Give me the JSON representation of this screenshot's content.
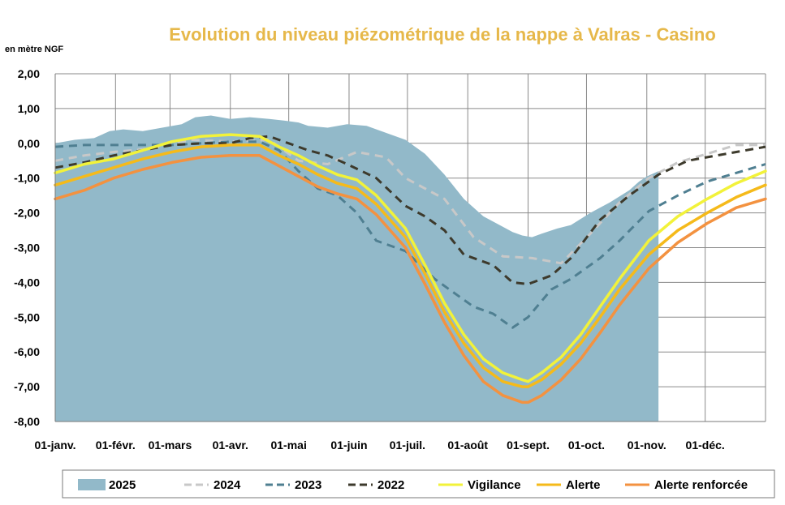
{
  "chart_data": {
    "type": "line",
    "title": "Evolution du niveau piézométrique de la nappe à Valras - Casino",
    "ylabel": "en mètre NGF",
    "xlabel": "",
    "ylim": [
      -8,
      2
    ],
    "xlim": [
      0,
      365
    ],
    "grid": true,
    "legend_position": "bottom",
    "y_ticks": [
      "2,00",
      "1,00",
      "0,00",
      "-1,00",
      "-2,00",
      "-3,00",
      "-4,00",
      "-5,00",
      "-6,00",
      "-7,00",
      "-8,00"
    ],
    "y_tick_values": [
      2,
      1,
      0,
      -1,
      -2,
      -3,
      -4,
      -5,
      -6,
      -7,
      -8
    ],
    "x_ticks": [
      "01-janv.",
      "01-févr.",
      "01-mars",
      "01-avr.",
      "01-mai",
      "01-juin",
      "01-juil.",
      "01-août",
      "01-sept.",
      "01-oct.",
      "01-nov.",
      "01-déc."
    ],
    "x_tick_days": [
      0,
      31,
      59,
      90,
      120,
      151,
      181,
      212,
      243,
      273,
      304,
      334
    ],
    "series": [
      {
        "name": "2025",
        "style": "area",
        "color": "#92b9c9",
        "x": [
          0,
          10,
          20,
          28,
          35,
          45,
          55,
          65,
          72,
          80,
          90,
          100,
          110,
          118,
          125,
          130,
          140,
          150,
          160,
          170,
          180,
          190,
          200,
          210,
          220,
          230,
          235,
          240,
          245,
          250,
          258,
          265,
          275,
          285,
          295,
          300,
          304,
          310
        ],
        "values": [
          0.0,
          0.1,
          0.15,
          0.35,
          0.4,
          0.35,
          0.45,
          0.55,
          0.75,
          0.8,
          0.7,
          0.75,
          0.7,
          0.65,
          0.6,
          0.5,
          0.45,
          0.55,
          0.5,
          0.3,
          0.1,
          -0.3,
          -0.9,
          -1.6,
          -2.1,
          -2.4,
          -2.55,
          -2.65,
          -2.7,
          -2.6,
          -2.45,
          -2.35,
          -2.0,
          -1.7,
          -1.35,
          -1.1,
          -0.95,
          -0.8
        ]
      },
      {
        "name": "2024",
        "style": "dashed",
        "color": "#c8c8c8",
        "x": [
          0,
          15,
          30,
          50,
          70,
          90,
          110,
          125,
          140,
          155,
          170,
          180,
          200,
          215,
          230,
          245,
          260,
          275,
          290,
          305,
          320,
          335,
          350,
          365
        ],
        "values": [
          -0.5,
          -0.35,
          -0.25,
          -0.15,
          0.1,
          0.05,
          0.1,
          -0.5,
          -0.6,
          -0.25,
          -0.4,
          -1.0,
          -1.6,
          -2.7,
          -3.25,
          -3.3,
          -3.45,
          -2.6,
          -1.7,
          -1.0,
          -0.55,
          -0.3,
          -0.05,
          -0.05
        ]
      },
      {
        "name": "2023",
        "style": "dashed",
        "color": "#4f7f91",
        "x": [
          0,
          15,
          30,
          45,
          60,
          75,
          90,
          105,
          115,
          125,
          135,
          145,
          155,
          165,
          180,
          195,
          205,
          215,
          225,
          235,
          243,
          255,
          265,
          280,
          290,
          305,
          320,
          335,
          350,
          365
        ],
        "values": [
          -0.1,
          -0.05,
          -0.05,
          -0.05,
          -0.05,
          0.0,
          0.05,
          0.05,
          -0.2,
          -0.8,
          -1.3,
          -1.5,
          -2.0,
          -2.8,
          -3.1,
          -3.9,
          -4.3,
          -4.7,
          -4.9,
          -5.3,
          -5.0,
          -4.2,
          -3.9,
          -3.3,
          -2.8,
          -1.95,
          -1.5,
          -1.1,
          -0.85,
          -0.6
        ]
      },
      {
        "name": "2022",
        "style": "dashed",
        "color": "#3d3a2c",
        "x": [
          0,
          15,
          30,
          45,
          60,
          75,
          90,
          100,
          110,
          120,
          130,
          140,
          150,
          165,
          180,
          190,
          200,
          210,
          225,
          235,
          243,
          255,
          265,
          280,
          295,
          310,
          325,
          340,
          365
        ],
        "values": [
          -0.7,
          -0.55,
          -0.35,
          -0.2,
          -0.05,
          0.0,
          0.0,
          0.15,
          0.2,
          0.0,
          -0.2,
          -0.35,
          -0.6,
          -1.0,
          -1.8,
          -2.1,
          -2.5,
          -3.2,
          -3.5,
          -4.0,
          -4.05,
          -3.8,
          -3.3,
          -2.2,
          -1.5,
          -0.9,
          -0.5,
          -0.35,
          -0.1
        ]
      },
      {
        "name": "Vigilance",
        "style": "solid",
        "color": "#f2f23a",
        "x": [
          0,
          15,
          30,
          45,
          60,
          75,
          90,
          105,
          115,
          125,
          135,
          145,
          155,
          165,
          180,
          190,
          200,
          210,
          220,
          230,
          240,
          243,
          250,
          260,
          270,
          280,
          290,
          305,
          320,
          335,
          350,
          365
        ],
        "values": [
          -0.85,
          -0.6,
          -0.45,
          -0.2,
          0.05,
          0.2,
          0.25,
          0.2,
          -0.1,
          -0.35,
          -0.65,
          -0.9,
          -1.05,
          -1.5,
          -2.45,
          -3.5,
          -4.6,
          -5.5,
          -6.2,
          -6.6,
          -6.8,
          -6.85,
          -6.6,
          -6.15,
          -5.5,
          -4.7,
          -3.9,
          -2.8,
          -2.1,
          -1.6,
          -1.15,
          -0.8
        ]
      },
      {
        "name": "Alerte",
        "style": "solid",
        "color": "#f5ba1a",
        "x": [
          0,
          15,
          30,
          45,
          60,
          75,
          90,
          105,
          115,
          125,
          135,
          145,
          155,
          165,
          180,
          190,
          200,
          210,
          220,
          230,
          240,
          243,
          250,
          260,
          270,
          280,
          290,
          305,
          320,
          335,
          350,
          365
        ],
        "values": [
          -1.2,
          -0.95,
          -0.7,
          -0.45,
          -0.25,
          -0.1,
          -0.05,
          -0.05,
          -0.35,
          -0.6,
          -0.9,
          -1.15,
          -1.3,
          -1.75,
          -2.7,
          -3.75,
          -4.85,
          -5.75,
          -6.45,
          -6.85,
          -7.0,
          -7.0,
          -6.8,
          -6.35,
          -5.75,
          -5.0,
          -4.2,
          -3.2,
          -2.5,
          -2.0,
          -1.55,
          -1.2
        ]
      },
      {
        "name": "Alerte renforcée",
        "style": "solid",
        "color": "#f39240",
        "x": [
          0,
          15,
          30,
          45,
          60,
          75,
          90,
          105,
          115,
          125,
          135,
          145,
          155,
          165,
          180,
          190,
          200,
          210,
          220,
          230,
          240,
          243,
          250,
          260,
          270,
          280,
          290,
          305,
          320,
          335,
          350,
          365
        ],
        "values": [
          -1.6,
          -1.35,
          -1.0,
          -0.75,
          -0.55,
          -0.4,
          -0.35,
          -0.35,
          -0.65,
          -0.95,
          -1.25,
          -1.45,
          -1.6,
          -2.05,
          -3.0,
          -4.05,
          -5.15,
          -6.1,
          -6.85,
          -7.25,
          -7.45,
          -7.45,
          -7.25,
          -6.8,
          -6.2,
          -5.45,
          -4.65,
          -3.6,
          -2.85,
          -2.3,
          -1.85,
          -1.6
        ]
      }
    ]
  }
}
